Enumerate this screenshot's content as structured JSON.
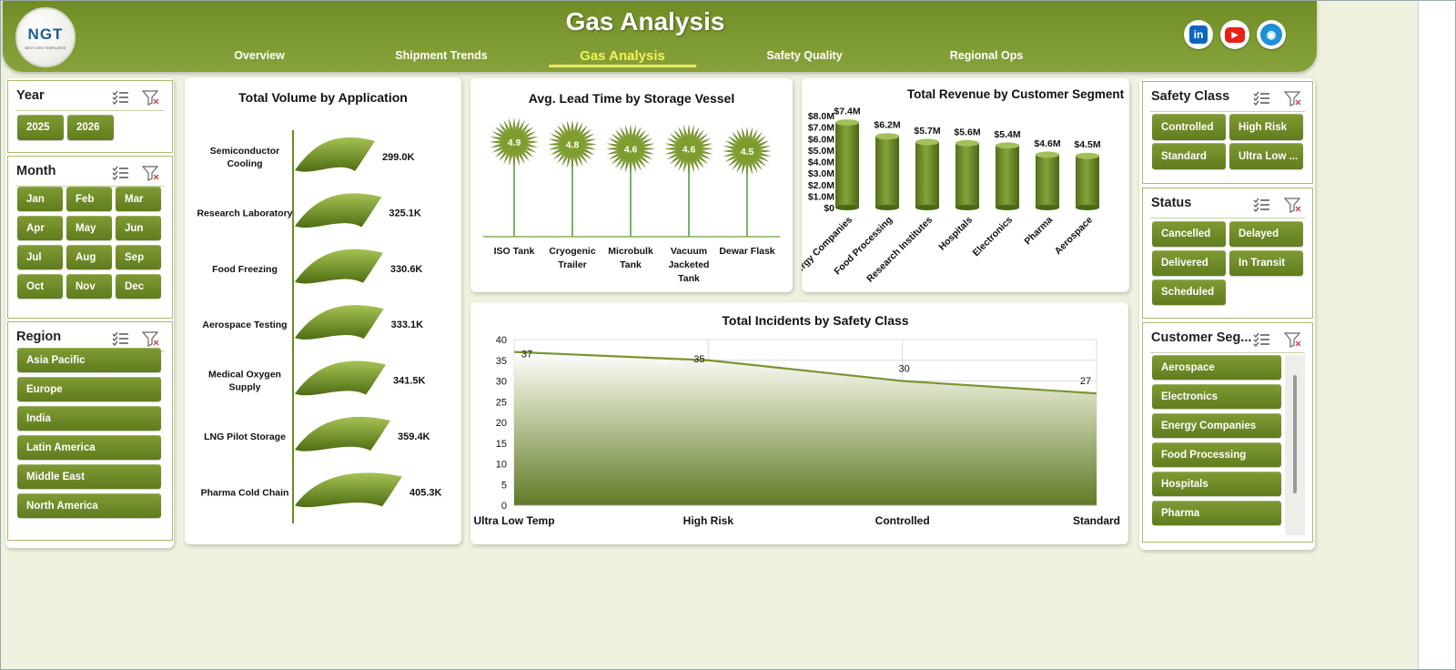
{
  "header": {
    "title": "Gas Analysis",
    "logo_text": "NGT",
    "logo_subtext": "NEXT GEN TEMPLATES",
    "nav": [
      {
        "label": "Overview",
        "active": false
      },
      {
        "label": "Shipment Trends",
        "active": false
      },
      {
        "label": "Gas Analysis",
        "active": true
      },
      {
        "label": "Safety Quality",
        "active": false
      },
      {
        "label": "Regional Ops",
        "active": false
      }
    ],
    "social": [
      {
        "icon": "linkedin-icon",
        "glyph": "in",
        "color": "#0a66c2"
      },
      {
        "icon": "youtube-icon",
        "glyph": "▶",
        "color": "#e62117"
      },
      {
        "icon": "globe-icon",
        "glyph": "◉",
        "color": "#1f8fd6"
      }
    ]
  },
  "slicers": {
    "year": {
      "title": "Year",
      "items": [
        "2025",
        "2026"
      ]
    },
    "month": {
      "title": "Month",
      "items": [
        "Jan",
        "Feb",
        "Mar",
        "Apr",
        "May",
        "Jun",
        "Jul",
        "Aug",
        "Sep",
        "Oct",
        "Nov",
        "Dec"
      ]
    },
    "region": {
      "title": "Region",
      "items": [
        "Asia Pacific",
        "Europe",
        "India",
        "Latin America",
        "Middle East",
        "North America"
      ]
    },
    "safety_class": {
      "title": "Safety Class",
      "items": [
        "Controlled",
        "High Risk",
        "Standard",
        "Ultra Low ..."
      ]
    },
    "status": {
      "title": "Status",
      "items": [
        "Cancelled",
        "Delayed",
        "Delivered",
        "In Transit",
        "Scheduled"
      ]
    },
    "customer_segment": {
      "title": "Customer Seg...",
      "items": [
        "Aerospace",
        "Electronics",
        "Energy Companies",
        "Food Processing",
        "Hospitals",
        "Pharma"
      ]
    }
  },
  "chart_data": [
    {
      "id": "volume",
      "type": "bar",
      "title": "Total Volume by Application",
      "categories": [
        "Semiconductor Cooling",
        "Research Laboratory",
        "Food Freezing",
        "Aerospace Testing",
        "Medical Oxygen Supply",
        "LNG Pilot Storage",
        "Pharma Cold Chain"
      ],
      "category_lines": [
        [
          "Semiconductor",
          "Cooling"
        ],
        [
          "Research Laboratory"
        ],
        [
          "Food Freezing"
        ],
        [
          "Aerospace Testing"
        ],
        [
          "Medical Oxygen",
          "Supply"
        ],
        [
          "LNG Pilot Storage"
        ],
        [
          "Pharma Cold Chain"
        ]
      ],
      "values": [
        299000,
        325100,
        330600,
        333100,
        341500,
        359400,
        405300
      ],
      "labels": [
        "299.0K",
        "325.1K",
        "330.6K",
        "333.1K",
        "341.5K",
        "359.4K",
        "405.3K"
      ],
      "color": "#6b8a22"
    },
    {
      "id": "leadtime",
      "type": "bar",
      "title": "Avg. Lead Time by Storage Vessel",
      "categories": [
        "ISO Tank",
        "Cryogenic Trailer",
        "Microbulk Tank",
        "Vacuum Jacketed Tank",
        "Dewar Flask"
      ],
      "category_lines": [
        [
          "ISO Tank"
        ],
        [
          "Cryogenic",
          "Trailer"
        ],
        [
          "Microbulk",
          "Tank"
        ],
        [
          "Vacuum",
          "Jacketed",
          "Tank"
        ],
        [
          "Dewar Flask"
        ]
      ],
      "values": [
        4.9,
        4.8,
        4.6,
        4.6,
        4.5
      ],
      "labels": [
        "4.9",
        "4.8",
        "4.6",
        "4.6",
        "4.5"
      ],
      "color": "#6b8a22"
    },
    {
      "id": "revenue",
      "type": "bar",
      "title": "Total Revenue  by Customer Segment",
      "categories": [
        "Energy Companies",
        "Food Processing",
        "Research Institutes",
        "Hospitals",
        "Electronics",
        "Pharma",
        "Aerospace"
      ],
      "values": [
        7.4,
        6.2,
        5.7,
        5.6,
        5.4,
        4.6,
        4.5
      ],
      "labels": [
        "$7.4M",
        "$6.2M",
        "$5.7M",
        "$5.6M",
        "$5.4M",
        "$4.6M",
        "$4.5M"
      ],
      "yticks": [
        "$0",
        "$1.0M",
        "$2.0M",
        "$3.0M",
        "$4.0M",
        "$5.0M",
        "$6.0M",
        "$7.0M",
        "$8.0M"
      ],
      "ylim": [
        0,
        8
      ],
      "color": "#6b8a22"
    },
    {
      "id": "incidents",
      "type": "area",
      "title": "Total Incidents by Safety Class",
      "categories": [
        "Ultra Low Temp",
        "High Risk",
        "Controlled",
        "Standard"
      ],
      "values": [
        37,
        35,
        30,
        27
      ],
      "labels": [
        "37",
        "35",
        "30",
        "27"
      ],
      "yticks": [
        "0",
        "5",
        "10",
        "15",
        "20",
        "25",
        "30",
        "35",
        "40"
      ],
      "ylim": [
        0,
        40
      ],
      "grid": true,
      "color": "#7b9530"
    }
  ]
}
